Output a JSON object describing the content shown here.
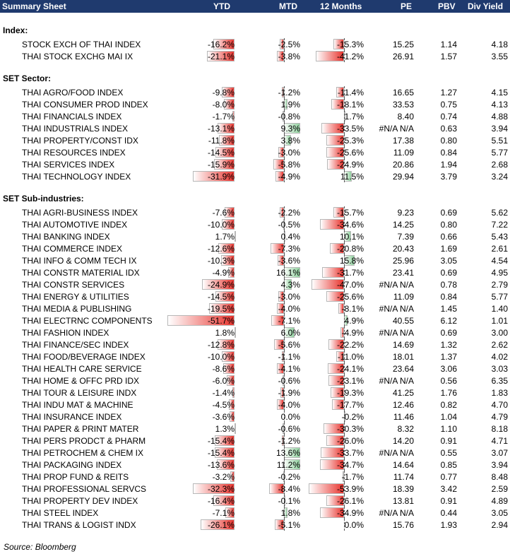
{
  "header": {
    "title": "Summary Sheet",
    "ytd": "YTD",
    "mtd": "MTD",
    "m12": "12 Months",
    "pe": "PE",
    "pbv": "PBV",
    "div": "Div Yield"
  },
  "sections": [
    {
      "title": "Index:",
      "rows": [
        {
          "name": "STOCK EXCH OF THAI INDEX",
          "ytd": "-16.2%",
          "mtd": "-2.5%",
          "m12": "-15.3%",
          "pe": "15.25",
          "pbv": "1.14",
          "div": "4.18"
        },
        {
          "name": "THAI STOCK EXCHG MAI IX",
          "ytd": "-21.1%",
          "mtd": "-3.8%",
          "m12": "-41.2%",
          "pe": "26.91",
          "pbv": "1.57",
          "div": "3.55"
        }
      ]
    },
    {
      "title": "SET Sector:",
      "rows": [
        {
          "name": "THAI AGRO/FOOD INDEX",
          "ytd": "-9.8%",
          "mtd": "-1.2%",
          "m12": "-11.4%",
          "pe": "16.65",
          "pbv": "1.27",
          "div": "4.15"
        },
        {
          "name": "THAI CONSUMER PROD INDEX",
          "ytd": "-8.0%",
          "mtd": "1.9%",
          "m12": "-18.1%",
          "pe": "33.53",
          "pbv": "0.75",
          "div": "4.13"
        },
        {
          "name": "THAI FINANCIALS INDEX",
          "ytd": "-1.7%",
          "mtd": "-0.8%",
          "m12": "1.7%",
          "pe": "8.40",
          "pbv": "0.74",
          "div": "4.88"
        },
        {
          "name": "THAI INDUSTRIALS INDEX",
          "ytd": "-13.1%",
          "mtd": "9.3%",
          "m12": "-33.5%",
          "pe": "#N/A N/A",
          "pbv": "0.63",
          "div": "3.94"
        },
        {
          "name": "THAI PROPERTY/CONST IDX",
          "ytd": "-11.8%",
          "mtd": "3.8%",
          "m12": "-25.3%",
          "pe": "17.38",
          "pbv": "0.80",
          "div": "5.51"
        },
        {
          "name": "THAI RESOURCES INDEX",
          "ytd": "-14.5%",
          "mtd": "-3.0%",
          "m12": "-25.6%",
          "pe": "11.09",
          "pbv": "0.84",
          "div": "5.77"
        },
        {
          "name": "THAI SERVICES INDEX",
          "ytd": "-15.9%",
          "mtd": "-5.8%",
          "m12": "-24.9%",
          "pe": "20.86",
          "pbv": "1.94",
          "div": "2.68"
        },
        {
          "name": "THAI TECHNOLOGY INDEX",
          "ytd": "-31.9%",
          "mtd": "-4.9%",
          "m12": "11.5%",
          "pe": "29.94",
          "pbv": "3.79",
          "div": "3.24"
        }
      ]
    },
    {
      "title": "SET Sub-industries:",
      "rows": [
        {
          "name": "THAI AGRI-BUSINESS INDEX",
          "ytd": "-7.6%",
          "mtd": "-2.2%",
          "m12": "-15.7%",
          "pe": "9.23",
          "pbv": "0.69",
          "div": "5.62"
        },
        {
          "name": "THAI AUTOMOTIVE INDEX",
          "ytd": "-10.0%",
          "mtd": "-0.5%",
          "m12": "-34.6%",
          "pe": "14.25",
          "pbv": "0.80",
          "div": "7.22"
        },
        {
          "name": "THAI BANKING INDEX",
          "ytd": "1.7%",
          "mtd": "0.4%",
          "m12": "10.1%",
          "pe": "7.39",
          "pbv": "0.66",
          "div": "5.43"
        },
        {
          "name": "THAI COMMERCE INDEX",
          "ytd": "-12.6%",
          "mtd": "-7.3%",
          "m12": "-20.8%",
          "pe": "20.43",
          "pbv": "1.69",
          "div": "2.61"
        },
        {
          "name": "THAI INFO & COMM TECH IX",
          "ytd": "-10.3%",
          "mtd": "-3.6%",
          "m12": "15.8%",
          "pe": "25.96",
          "pbv": "3.05",
          "div": "4.54"
        },
        {
          "name": "THAI CONSTR MATERIAL IDX",
          "ytd": "-4.9%",
          "mtd": "16.1%",
          "m12": "-31.7%",
          "pe": "23.41",
          "pbv": "0.69",
          "div": "4.95"
        },
        {
          "name": "THAI CONSTR SERVICES",
          "ytd": "-24.9%",
          "mtd": "4.3%",
          "m12": "-47.0%",
          "pe": "#N/A N/A",
          "pbv": "0.78",
          "div": "2.79"
        },
        {
          "name": "THAI ENERGY & UTILITIES",
          "ytd": "-14.5%",
          "mtd": "-3.0%",
          "m12": "-25.6%",
          "pe": "11.09",
          "pbv": "0.84",
          "div": "5.77"
        },
        {
          "name": "THAI MEDIA & PUBLISHING",
          "ytd": "-19.5%",
          "mtd": "-4.0%",
          "m12": "-8.1%",
          "pe": "#N/A N/A",
          "pbv": "1.45",
          "div": "1.40"
        },
        {
          "name": "THAI ELECTRNC COMPONENTS",
          "ytd": "-51.7%",
          "mtd": "-7.1%",
          "m12": "4.9%",
          "pe": "40.55",
          "pbv": "6.12",
          "div": "1.01"
        },
        {
          "name": "THAI FASHION INDEX",
          "ytd": "1.8%",
          "mtd": "6.0%",
          "m12": "-4.9%",
          "pe": "#N/A N/A",
          "pbv": "0.69",
          "div": "3.00"
        },
        {
          "name": "THAI FINANCE/SEC INDEX",
          "ytd": "-12.8%",
          "mtd": "-5.6%",
          "m12": "-22.2%",
          "pe": "14.69",
          "pbv": "1.32",
          "div": "2.62"
        },
        {
          "name": "THAI FOOD/BEVERAGE INDEX",
          "ytd": "-10.0%",
          "mtd": "-1.1%",
          "m12": "-11.0%",
          "pe": "18.01",
          "pbv": "1.37",
          "div": "4.02"
        },
        {
          "name": "THAI HEALTH CARE SERVICE",
          "ytd": "-8.6%",
          "mtd": "-4.1%",
          "m12": "-24.1%",
          "pe": "23.64",
          "pbv": "3.06",
          "div": "3.03"
        },
        {
          "name": "THAI HOME & OFFC PRD IDX",
          "ytd": "-6.0%",
          "mtd": "-0.6%",
          "m12": "-23.1%",
          "pe": "#N/A N/A",
          "pbv": "0.56",
          "div": "6.35"
        },
        {
          "name": "THAI TOUR & LEISURE INDX",
          "ytd": "-1.4%",
          "mtd": "-1.9%",
          "m12": "-19.3%",
          "pe": "41.25",
          "pbv": "1.76",
          "div": "1.83"
        },
        {
          "name": "THAI INDU MAT & MACHINE",
          "ytd": "-4.5%",
          "mtd": "-4.0%",
          "m12": "-17.7%",
          "pe": "12.46",
          "pbv": "0.82",
          "div": "4.70"
        },
        {
          "name": "THAI INSURANCE INDEX",
          "ytd": "-3.6%",
          "mtd": "0.0%",
          "m12": "-0.2%",
          "pe": "11.46",
          "pbv": "1.04",
          "div": "4.79"
        },
        {
          "name": "THAI PAPER & PRINT MATER",
          "ytd": "1.3%",
          "mtd": "-0.6%",
          "m12": "-30.3%",
          "pe": "8.32",
          "pbv": "1.10",
          "div": "8.18"
        },
        {
          "name": "THAI PERS PRODCT & PHARM",
          "ytd": "-15.4%",
          "mtd": "-1.2%",
          "m12": "-26.0%",
          "pe": "14.20",
          "pbv": "0.91",
          "div": "4.71"
        },
        {
          "name": "THAI PETROCHEM & CHEM IX",
          "ytd": "-15.4%",
          "mtd": "13.6%",
          "m12": "-33.7%",
          "pe": "#N/A N/A",
          "pbv": "0.55",
          "div": "3.07"
        },
        {
          "name": "THAI PACKAGING INDEX",
          "ytd": "-13.6%",
          "mtd": "11.2%",
          "m12": "-34.7%",
          "pe": "14.64",
          "pbv": "0.85",
          "div": "3.94"
        },
        {
          "name": "THAI PROP FUND & REITS",
          "ytd": "-3.2%",
          "mtd": "-0.2%",
          "m12": "-1.7%",
          "pe": "11.74",
          "pbv": "0.77",
          "div": "8.48"
        },
        {
          "name": "THAI PROFESSIONAL SERVCS",
          "ytd": "-32.3%",
          "mtd": "-8.4%",
          "m12": "-53.9%",
          "pe": "18.39",
          "pbv": "3.42",
          "div": "2.59"
        },
        {
          "name": "THAI PROPERTY DEV INDEX",
          "ytd": "-16.4%",
          "mtd": "-0.1%",
          "m12": "-26.1%",
          "pe": "13.81",
          "pbv": "0.91",
          "div": "4.89"
        },
        {
          "name": "THAI STEEL INDEX",
          "ytd": "-7.1%",
          "mtd": "1.8%",
          "m12": "-34.9%",
          "pe": "#N/A N/A",
          "pbv": "0.44",
          "div": "3.05"
        },
        {
          "name": "THAI TRANS & LOGIST INDX",
          "ytd": "-26.1%",
          "mtd": "-5.1%",
          "m12": "0.0%",
          "pe": "15.76",
          "pbv": "1.93",
          "div": "2.94"
        }
      ]
    }
  ],
  "source": "Source: Bloomberg"
}
